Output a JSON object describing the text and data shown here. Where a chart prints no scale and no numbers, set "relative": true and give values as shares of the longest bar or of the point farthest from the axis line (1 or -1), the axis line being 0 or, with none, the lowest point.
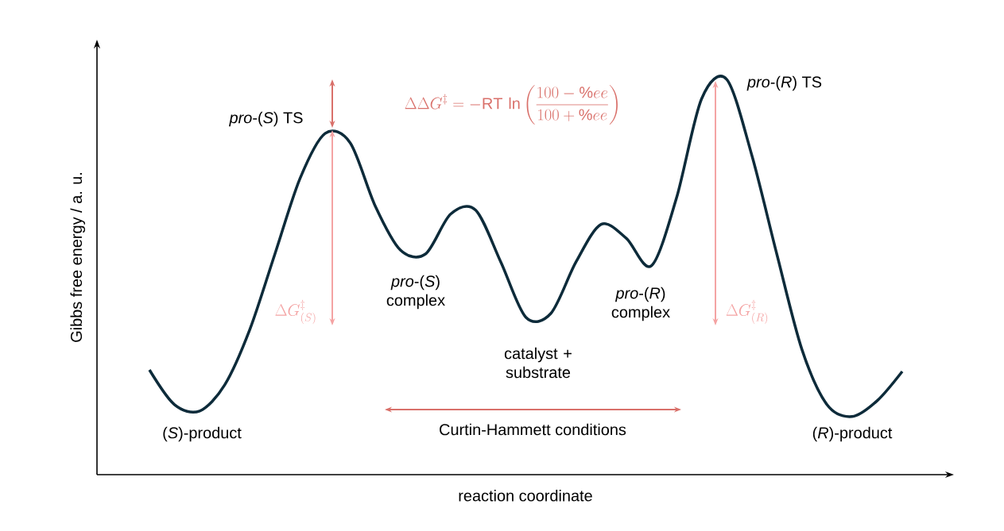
{
  "chart_data": {
    "type": "line",
    "relative": true,
    "color": "#0d2b3a",
    "xlabel": "reaction coordinate",
    "ylabel": "Gibbs free energy / a. u.",
    "categories": [
      null,
      null,
      null,
      null,
      null,
      null,
      null,
      null,
      null,
      null,
      null,
      null,
      null,
      null,
      null,
      null,
      null,
      null,
      null,
      null,
      null,
      null,
      null,
      null,
      null,
      null,
      null,
      null,
      null,
      null,
      null
    ],
    "values": [
      0.265,
      0.177,
      0.161,
      0.227,
      0.367,
      0.558,
      0.749,
      0.863,
      0.839,
      0.679,
      0.568,
      0.558,
      0.659,
      0.669,
      0.538,
      0.398,
      0.408,
      0.538,
      0.633,
      0.598,
      0.528,
      0.699,
      0.95,
      1.0,
      0.809,
      0.558,
      0.317,
      0.177,
      0.147,
      0.187,
      0.261
    ],
    "annotations": [
      "*pro*-(*S*) TS",
      "\\Delta\\Delta G^{\\ddagger} = -\\mathrm{RT}\\,\\ln\\left(\\frac{100-\\%ee}{100+\\%ee}\\right)",
      "*pro*-(*R*) TS",
      "\\Delta G^{\\ddagger}_{(S)}",
      "*pro*-(*S*) complex",
      "*pro*-(*R*) complex",
      "catalyst + substrate",
      "\\Delta G^{\\ddagger}_{(R)}",
      "(*S*)-product",
      "Curtin-Hammett conditions",
      "(*R*)-product"
    ]
  }
}
